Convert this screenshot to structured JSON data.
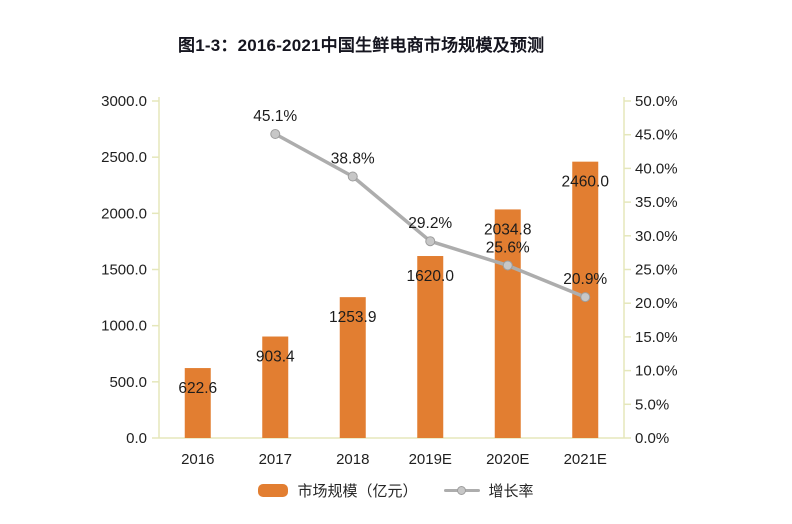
{
  "title": "图1-3：2016-2021中国生鲜电商市场规模及预测",
  "colors": {
    "bar": "#E27E31",
    "line": "#ADADAD",
    "marker_fill": "#C7C7C7",
    "marker_stroke": "#9D9D9D",
    "axis": "#E5E7BB",
    "tick_text": "#1F1F1F",
    "data_label_text": "#1C1C1C",
    "title_text": "#15151F",
    "background": "#FFFFFF"
  },
  "chart_data": {
    "type": "bar",
    "subtype": "bar-line-combo",
    "title": "图1-3：2016-2021中国生鲜电商市场规模及预测",
    "categories": [
      "2016",
      "2017",
      "2018",
      "2019E",
      "2020E",
      "2021E"
    ],
    "series": [
      {
        "name": "市场规模（亿元）",
        "type": "bar",
        "axis": "left",
        "values": [
          622.6,
          903.4,
          1253.9,
          1620.0,
          2034.8,
          2460.0
        ],
        "labels": [
          "622.6",
          "903.4",
          "1253.9",
          "1620.0",
          "2034.8",
          "2460.0"
        ]
      },
      {
        "name": "增长率",
        "type": "line",
        "axis": "right",
        "values": [
          null,
          45.1,
          38.8,
          29.2,
          25.6,
          20.9
        ],
        "labels": [
          null,
          "45.1%",
          "38.8%",
          "29.2%",
          "25.6%",
          "20.9%"
        ]
      }
    ],
    "left_axis": {
      "min": 0,
      "max": 3000,
      "step": 500,
      "tick_labels": [
        "0.0",
        "500.0",
        "1000.0",
        "1500.0",
        "2000.0",
        "2500.0",
        "3000.0"
      ]
    },
    "right_axis": {
      "min": 0,
      "max": 50,
      "step": 5,
      "tick_labels": [
        "0.0%",
        "5.0%",
        "10.0%",
        "15.0%",
        "20.0%",
        "25.0%",
        "30.0%",
        "35.0%",
        "40.0%",
        "45.0%",
        "50.0%"
      ]
    },
    "grid": "off",
    "legend_position": "bottom"
  },
  "legend": {
    "bar_label": "市场规模（亿元）",
    "line_label": "增长率"
  }
}
